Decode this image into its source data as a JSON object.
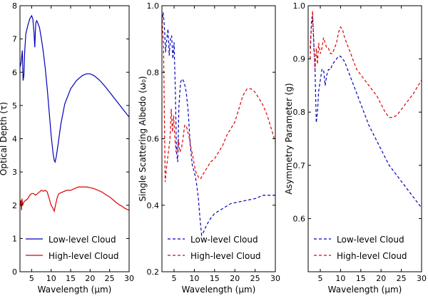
{
  "chart_data": [
    {
      "type": "line",
      "ylabel": "Optical Depth (τ)",
      "xlabel": "Wavelength (μm)",
      "xlim": [
        2,
        30
      ],
      "ylim": [
        0,
        8
      ],
      "xticks": [
        5,
        10,
        15,
        20,
        25,
        30
      ],
      "yticks": [
        0,
        1,
        2,
        3,
        4,
        5,
        6,
        7,
        8
      ],
      "legend_position": "lower-left",
      "series": [
        {
          "name": "Low-level Cloud",
          "color": "#0000bb",
          "dash": "solid",
          "x": [
            2.0,
            2.3,
            2.6,
            2.8,
            3.0,
            3.2,
            3.5,
            4.0,
            4.5,
            5.0,
            5.3,
            5.6,
            5.8,
            6.0,
            6.1,
            6.3,
            6.5,
            7.0,
            7.5,
            8.0,
            8.5,
            9.0,
            9.5,
            10.0,
            10.5,
            10.8,
            11.0,
            11.3,
            11.8,
            12.5,
            13.5,
            15.0,
            16.5,
            18.0,
            19.0,
            20.0,
            21.0,
            22.5,
            24.0,
            26.0,
            28.0,
            30.0
          ],
          "y": [
            6.15,
            6.3,
            6.65,
            5.75,
            5.9,
            6.6,
            7.15,
            7.4,
            7.6,
            7.7,
            7.6,
            7.2,
            6.75,
            7.35,
            7.5,
            7.55,
            7.5,
            7.35,
            7.0,
            6.6,
            6.1,
            5.5,
            4.8,
            4.1,
            3.55,
            3.35,
            3.3,
            3.45,
            3.85,
            4.45,
            5.05,
            5.5,
            5.75,
            5.9,
            5.95,
            5.95,
            5.9,
            5.75,
            5.55,
            5.25,
            4.95,
            4.65
          ]
        },
        {
          "name": "High-level Cloud",
          "color": "#dd0000",
          "dash": "solid",
          "x": [
            2.0,
            2.2,
            2.4,
            2.5,
            2.7,
            3.0,
            3.5,
            4.0,
            4.5,
            5.0,
            5.5,
            6.0,
            6.5,
            7.0,
            7.5,
            8.0,
            8.5,
            9.0,
            9.5,
            10.0,
            10.5,
            10.8,
            11.2,
            11.6,
            12.0,
            13.0,
            14.0,
            15.0,
            16.0,
            17.0,
            18.0,
            19.0,
            20.0,
            21.0,
            22.0,
            23.0,
            24.0,
            25.0,
            26.0,
            27.0,
            28.0,
            29.0,
            30.0
          ],
          "y": [
            2.0,
            2.15,
            1.85,
            2.2,
            2.0,
            2.1,
            2.15,
            2.2,
            2.3,
            2.35,
            2.35,
            2.3,
            2.35,
            2.4,
            2.45,
            2.42,
            2.45,
            2.4,
            2.2,
            2.0,
            1.9,
            1.82,
            2.05,
            2.25,
            2.35,
            2.4,
            2.45,
            2.45,
            2.5,
            2.55,
            2.55,
            2.55,
            2.53,
            2.5,
            2.45,
            2.4,
            2.32,
            2.25,
            2.15,
            2.05,
            1.98,
            1.9,
            1.85
          ]
        }
      ]
    },
    {
      "type": "line",
      "ylabel": "Single Scattering Albedo (ω₀)",
      "xlabel": "Wavelength (μm)",
      "xlim": [
        2,
        30
      ],
      "ylim": [
        0.2,
        1.0
      ],
      "xticks": [
        5,
        10,
        15,
        20,
        25,
        30
      ],
      "yticks": [
        0.2,
        0.4,
        0.6,
        0.8,
        1.0
      ],
      "legend_position": "lower-left",
      "series": [
        {
          "name": "Low-level Cloud",
          "color": "#0000bb",
          "dash": "dashed",
          "x": [
            2.0,
            2.3,
            2.6,
            2.9,
            3.2,
            3.5,
            3.8,
            4.1,
            4.4,
            4.7,
            5.0,
            5.3,
            5.6,
            5.9,
            6.2,
            6.6,
            7.0,
            7.5,
            8.0,
            8.5,
            9.0,
            9.5,
            10.0,
            10.5,
            11.0,
            11.4,
            11.8,
            12.3,
            13.0,
            14.0,
            15.0,
            17.0,
            19.0,
            21.0,
            23.0,
            25.0,
            27.0,
            28.5,
            30.0
          ],
          "y": [
            0.95,
            0.98,
            0.94,
            0.86,
            0.9,
            0.93,
            0.85,
            0.9,
            0.91,
            0.84,
            0.89,
            0.75,
            0.56,
            0.53,
            0.7,
            0.77,
            0.78,
            0.77,
            0.74,
            0.68,
            0.58,
            0.52,
            0.5,
            0.47,
            0.42,
            0.36,
            0.31,
            0.32,
            0.34,
            0.36,
            0.375,
            0.39,
            0.405,
            0.41,
            0.415,
            0.42,
            0.43,
            0.43,
            0.43
          ]
        },
        {
          "name": "High-level Cloud",
          "color": "#dd0000",
          "dash": "dashed",
          "x": [
            2.0,
            2.4,
            2.8,
            3.2,
            3.6,
            4.0,
            4.3,
            4.6,
            4.9,
            5.2,
            5.5,
            5.8,
            6.1,
            6.4,
            6.8,
            7.2,
            7.6,
            8.0,
            8.4,
            8.8,
            9.2,
            9.6,
            10.0,
            10.4,
            10.8,
            11.2,
            11.6,
            12.0,
            13.0,
            14.0,
            15.0,
            16.0,
            17.0,
            18.0,
            19.0,
            20.0,
            21.0,
            22.0,
            23.0,
            24.0,
            25.0,
            26.0,
            27.0,
            28.0,
            29.0,
            30.0
          ],
          "y": [
            0.97,
            0.88,
            0.47,
            0.52,
            0.56,
            0.6,
            0.69,
            0.62,
            0.67,
            0.6,
            0.56,
            0.56,
            0.6,
            0.56,
            0.57,
            0.6,
            0.64,
            0.64,
            0.62,
            0.6,
            0.57,
            0.55,
            0.52,
            0.5,
            0.49,
            0.48,
            0.48,
            0.49,
            0.51,
            0.53,
            0.54,
            0.56,
            0.58,
            0.61,
            0.63,
            0.65,
            0.69,
            0.73,
            0.75,
            0.75,
            0.74,
            0.72,
            0.7,
            0.67,
            0.63,
            0.59
          ]
        }
      ]
    },
    {
      "type": "line",
      "ylabel": "Asymmetry Parameter (g)",
      "xlabel": "Wavelength (μm)",
      "xlim": [
        2,
        30
      ],
      "ylim": [
        0.5,
        1.0
      ],
      "xticks": [
        5,
        10,
        15,
        20,
        25,
        30
      ],
      "yticks": [
        0.6,
        0.7,
        0.8,
        0.9,
        1.0
      ],
      "legend_position": "lower-left",
      "series": [
        {
          "name": "Low-level Cloud",
          "color": "#0000bb",
          "dash": "dashed",
          "x": [
            2.5,
            2.8,
            3.1,
            3.4,
            3.7,
            4.0,
            4.3,
            4.6,
            5.0,
            5.4,
            5.8,
            6.2,
            6.6,
            7.0,
            7.5,
            8.0,
            8.5,
            9.0,
            9.5,
            10.0,
            10.5,
            11.0,
            11.5,
            12.0,
            13.0,
            14.0,
            15.0,
            16.0,
            17.0,
            18.0,
            19.0,
            20.0,
            21.0,
            22.0,
            23.0,
            24.0,
            25.0,
            26.0,
            27.0,
            28.0,
            29.0,
            30.0
          ],
          "y": [
            0.92,
            0.96,
            0.98,
            0.93,
            0.88,
            0.78,
            0.8,
            0.84,
            0.86,
            0.88,
            0.88,
            0.85,
            0.87,
            0.88,
            0.88,
            0.89,
            0.895,
            0.9,
            0.905,
            0.905,
            0.9,
            0.895,
            0.885,
            0.875,
            0.855,
            0.835,
            0.815,
            0.795,
            0.775,
            0.76,
            0.745,
            0.73,
            0.715,
            0.7,
            0.69,
            0.68,
            0.67,
            0.66,
            0.65,
            0.64,
            0.63,
            0.62
          ]
        },
        {
          "name": "High-level Cloud",
          "color": "#dd0000",
          "dash": "dashed",
          "x": [
            2.5,
            2.8,
            3.1,
            3.4,
            3.7,
            4.0,
            4.3,
            4.6,
            5.0,
            5.4,
            5.8,
            6.2,
            6.6,
            7.0,
            7.5,
            8.0,
            8.5,
            9.0,
            9.5,
            10.0,
            10.5,
            11.0,
            11.5,
            12.0,
            13.0,
            14.0,
            15.0,
            16.0,
            17.0,
            18.0,
            19.0,
            20.0,
            21.0,
            22.0,
            23.0,
            24.0,
            25.0,
            26.0,
            27.0,
            28.0,
            29.0,
            30.0
          ],
          "y": [
            0.9,
            0.97,
            0.99,
            0.92,
            0.88,
            0.92,
            0.89,
            0.93,
            0.91,
            0.92,
            0.94,
            0.93,
            0.92,
            0.92,
            0.91,
            0.91,
            0.92,
            0.93,
            0.95,
            0.96,
            0.955,
            0.94,
            0.93,
            0.92,
            0.9,
            0.88,
            0.87,
            0.86,
            0.85,
            0.84,
            0.83,
            0.815,
            0.8,
            0.79,
            0.79,
            0.795,
            0.805,
            0.815,
            0.825,
            0.835,
            0.848,
            0.86
          ]
        }
      ]
    }
  ]
}
